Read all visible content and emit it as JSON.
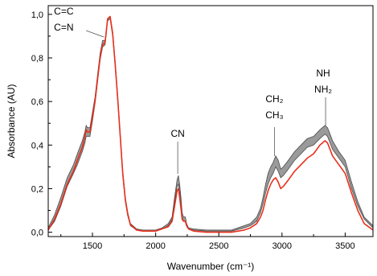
{
  "chart_data": {
    "type": "line",
    "xlabel": "Wavenumber (cm⁻¹)",
    "ylabel": "Absorbance (AU)",
    "xlim": [
      1150,
      3720
    ],
    "ylim": [
      -0.02,
      1.04
    ],
    "x_ticks": [
      1500,
      2000,
      2500,
      3000,
      3500
    ],
    "y_ticks": [
      0.0,
      0.2,
      0.4,
      0.6,
      0.8,
      1.0
    ],
    "y_tick_labels": [
      "0,0",
      "0,2",
      "0,4",
      "0,6",
      "0,8",
      "1,0"
    ],
    "grid": false,
    "colors": {
      "band": "#9a9a9a",
      "band_edge": "#4a4a4a",
      "main": "#e8301c"
    },
    "annotations": [
      {
        "lines": [
          "C=C",
          "C=N"
        ],
        "x": 1590,
        "y": 0.905
      },
      {
        "lines": [
          "CN"
        ],
        "x": 2175,
        "y": 0.26
      },
      {
        "lines": [
          "CH₂",
          "CH₃"
        ],
        "x": 2940,
        "y": 0.345
      },
      {
        "lines": [
          "NH",
          "NH₂"
        ],
        "x": 3345,
        "y": 0.485
      }
    ],
    "series": [
      {
        "role": "band",
        "x": [
          1150,
          1200,
          1250,
          1300,
          1350,
          1380,
          1400,
          1420,
          1440,
          1450,
          1460,
          1480,
          1500,
          1520,
          1540,
          1560,
          1580,
          1600,
          1620,
          1640,
          1660,
          1680,
          1700,
          1720,
          1740,
          1760,
          1780,
          1800,
          1850,
          1900,
          1950,
          2000,
          2050,
          2100,
          2130,
          2150,
          2170,
          2180,
          2190,
          2200,
          2210,
          2220,
          2235,
          2245,
          2260,
          2300,
          2400,
          2500,
          2600,
          2700,
          2750,
          2800,
          2830,
          2850,
          2870,
          2890,
          2910,
          2930,
          2950,
          2970,
          2990,
          3010,
          3050,
          3100,
          3150,
          3200,
          3250,
          3300,
          3320,
          3340,
          3360,
          3380,
          3400,
          3450,
          3500,
          3550,
          3600,
          3650,
          3720
        ],
        "upper": [
          0.02,
          0.08,
          0.16,
          0.25,
          0.31,
          0.36,
          0.39,
          0.42,
          0.46,
          0.49,
          0.48,
          0.48,
          0.55,
          0.62,
          0.72,
          0.82,
          0.88,
          0.88,
          0.98,
          0.99,
          0.92,
          0.78,
          0.62,
          0.45,
          0.28,
          0.16,
          0.09,
          0.04,
          0.015,
          0.01,
          0.01,
          0.01,
          0.02,
          0.04,
          0.07,
          0.16,
          0.24,
          0.26,
          0.22,
          0.16,
          0.09,
          0.07,
          0.07,
          0.04,
          0.02,
          0.015,
          0.01,
          0.01,
          0.01,
          0.03,
          0.04,
          0.07,
          0.11,
          0.16,
          0.22,
          0.27,
          0.3,
          0.32,
          0.35,
          0.33,
          0.29,
          0.3,
          0.33,
          0.37,
          0.4,
          0.43,
          0.44,
          0.47,
          0.48,
          0.49,
          0.48,
          0.45,
          0.42,
          0.37,
          0.33,
          0.23,
          0.14,
          0.07,
          0.03
        ],
        "lower": [
          0.01,
          0.05,
          0.12,
          0.21,
          0.27,
          0.31,
          0.34,
          0.37,
          0.41,
          0.44,
          0.44,
          0.44,
          0.51,
          0.59,
          0.69,
          0.79,
          0.85,
          0.86,
          0.97,
          0.98,
          0.9,
          0.76,
          0.6,
          0.43,
          0.26,
          0.14,
          0.075,
          0.03,
          0.01,
          0.005,
          0.005,
          0.005,
          0.015,
          0.03,
          0.06,
          0.14,
          0.21,
          0.22,
          0.18,
          0.13,
          0.07,
          0.05,
          0.05,
          0.03,
          0.015,
          0.01,
          0.005,
          0.005,
          0.005,
          0.02,
          0.03,
          0.05,
          0.09,
          0.13,
          0.18,
          0.22,
          0.25,
          0.27,
          0.3,
          0.28,
          0.25,
          0.26,
          0.29,
          0.33,
          0.36,
          0.39,
          0.4,
          0.43,
          0.44,
          0.45,
          0.44,
          0.41,
          0.38,
          0.34,
          0.3,
          0.2,
          0.12,
          0.06,
          0.02
        ]
      },
      {
        "role": "main",
        "x": [
          1150,
          1200,
          1250,
          1300,
          1350,
          1380,
          1400,
          1420,
          1440,
          1450,
          1460,
          1480,
          1500,
          1520,
          1540,
          1560,
          1580,
          1600,
          1620,
          1640,
          1660,
          1680,
          1700,
          1720,
          1740,
          1760,
          1780,
          1800,
          1850,
          1900,
          1950,
          2000,
          2050,
          2100,
          2130,
          2150,
          2170,
          2180,
          2190,
          2200,
          2210,
          2220,
          2235,
          2245,
          2260,
          2300,
          2400,
          2500,
          2600,
          2700,
          2750,
          2800,
          2830,
          2850,
          2870,
          2890,
          2910,
          2930,
          2950,
          2970,
          2990,
          3010,
          3050,
          3100,
          3150,
          3200,
          3250,
          3300,
          3320,
          3340,
          3360,
          3380,
          3400,
          3450,
          3500,
          3550,
          3600,
          3650,
          3720
        ],
        "y": [
          0.01,
          0.06,
          0.13,
          0.22,
          0.28,
          0.33,
          0.36,
          0.39,
          0.44,
          0.47,
          0.46,
          0.46,
          0.53,
          0.6,
          0.7,
          0.8,
          0.86,
          0.87,
          0.98,
          0.99,
          0.91,
          0.77,
          0.61,
          0.44,
          0.27,
          0.15,
          0.08,
          0.035,
          0.01,
          0.005,
          0.005,
          0.005,
          0.015,
          0.025,
          0.05,
          0.12,
          0.19,
          0.2,
          0.16,
          0.11,
          0.06,
          0.05,
          0.05,
          0.03,
          0.015,
          0.005,
          0.0,
          0.0,
          0.0,
          0.01,
          0.02,
          0.04,
          0.07,
          0.1,
          0.15,
          0.19,
          0.22,
          0.24,
          0.25,
          0.23,
          0.2,
          0.21,
          0.24,
          0.28,
          0.31,
          0.34,
          0.36,
          0.4,
          0.41,
          0.42,
          0.41,
          0.38,
          0.35,
          0.31,
          0.27,
          0.18,
          0.1,
          0.04,
          0.01
        ]
      }
    ]
  }
}
